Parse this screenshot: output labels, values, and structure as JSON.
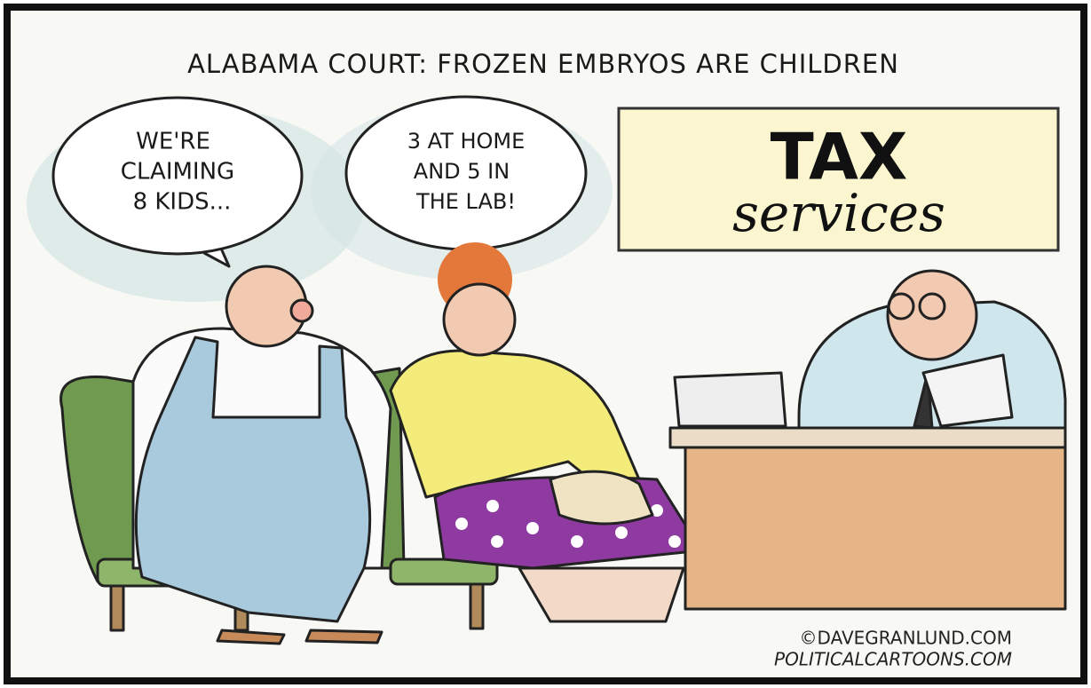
{
  "caption": {
    "title": "ALABAMA COURT: FROZEN EMBRYOS ARE CHILDREN"
  },
  "bubbles": [
    {
      "lines": [
        "WE'RE",
        "CLAIMING",
        "8 KIDS..."
      ]
    },
    {
      "lines": [
        "3 AT HOME",
        "AND 5 IN",
        "THE LAB!"
      ]
    }
  ],
  "sign": {
    "line1": "TAX",
    "line2": "services"
  },
  "credit": {
    "line1": "©DAVEGRANLUND.COM",
    "line2": "POLITICALCARTOONS.COM"
  }
}
